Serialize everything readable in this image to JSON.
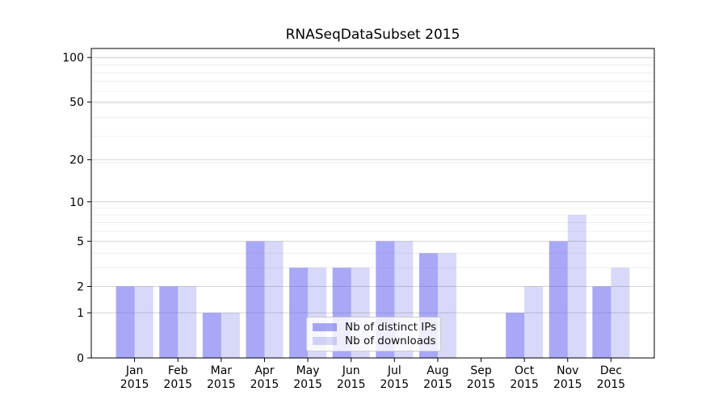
{
  "chart_data": {
    "type": "bar",
    "title": "RNASeqDataSubset 2015",
    "categories": [
      "Jan",
      "Feb",
      "Mar",
      "Apr",
      "May",
      "Jun",
      "Jul",
      "Aug",
      "Sep",
      "Oct",
      "Nov",
      "Dec"
    ],
    "category_year": "2015",
    "series": [
      {
        "name": "Nb of distinct IPs",
        "color": "#5252ee",
        "opacity": 0.5,
        "values": [
          2,
          2,
          1,
          5,
          3,
          3,
          5,
          4,
          0,
          1,
          5,
          2
        ]
      },
      {
        "name": "Nb of downloads",
        "color": "#0b0bd3",
        "opacity": 0.16,
        "values": [
          2,
          2,
          1,
          5,
          3,
          3,
          5,
          4,
          0,
          2,
          8,
          3
        ]
      }
    ],
    "y_ticks": [
      0,
      1,
      2,
      5,
      10,
      20,
      50,
      100
    ],
    "y_scale": "log10(1+y)",
    "ylim": [
      0,
      115
    ],
    "grid": {
      "major_color": "#d4d4d4",
      "minor_color": "#ececec"
    },
    "legend_position": "lower center",
    "axis_color": "#000000"
  }
}
